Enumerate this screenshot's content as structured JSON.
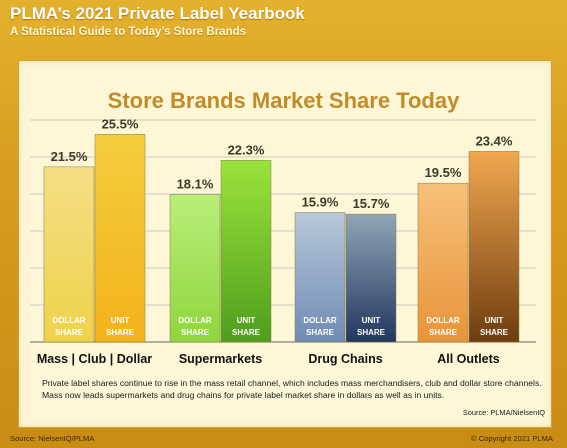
{
  "header": {
    "title": "PLMA’s 2021 Private Label Yearbook",
    "subtitle": "A Statistical Guide to Today’s Store Brands"
  },
  "chart_data": {
    "type": "bar",
    "title": "Store Brands Market Share Today",
    "categories": [
      "Mass | Club | Dollar",
      "Supermarkets",
      "Drug Chains",
      "All Outlets"
    ],
    "series": [
      {
        "name": "DOLLAR SHARE",
        "values": [
          21.5,
          18.1,
          15.9,
          19.5
        ],
        "labels": [
          "21.5%",
          "18.1%",
          "15.9%",
          "19.5%"
        ]
      },
      {
        "name": "UNIT SHARE",
        "values": [
          25.5,
          22.3,
          15.7,
          23.4
        ],
        "labels": [
          "25.5%",
          "22.3%",
          "15.7%",
          "23.4%"
        ]
      }
    ],
    "bar_label_lines": [
      "DOLLAR",
      "SHARE",
      "UNIT",
      "SHARE"
    ],
    "ylim": [
      0,
      27.5
    ],
    "grid": true,
    "colors": {
      "dollar": [
        "#f6de86",
        "#efd24a",
        "#b9ee7a",
        "#8fd63d",
        "#b7c8d8",
        "#6f8bb5",
        "#f7c07a",
        "#e8943a"
      ],
      "unit": [
        "#f4cd3e",
        "#f3b21b",
        "#9ae33c",
        "#4f9e1c",
        "#8fa6b6",
        "#22375f",
        "#f2a750",
        "#6e3d0f"
      ]
    }
  },
  "footnote": "Private label shares continue to rise in the mass retail channel, which includes mass merchandisers, club and dollar store channels. Mass now leads supermarkets and drug chains for private label market share in dollars as well as in units.",
  "panel_source": "Source: PLMA/NielsenIQ",
  "source": "Source: NielsenIQ/PLMA",
  "copyright": "© Copyright 2021 PLMA"
}
